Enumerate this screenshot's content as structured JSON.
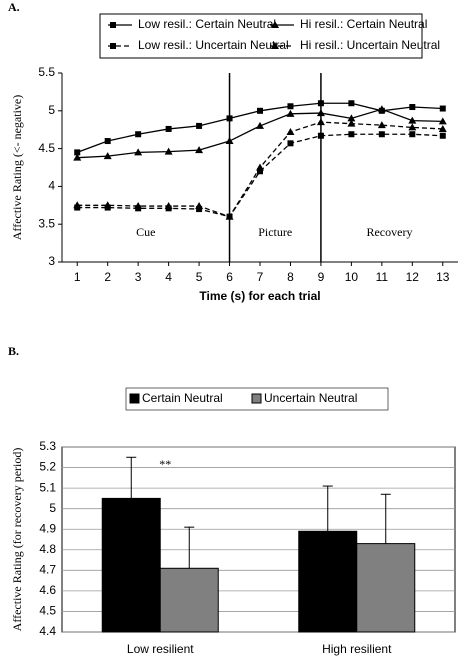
{
  "chart_data": [
    {
      "type": "line",
      "panel_label": "A.",
      "x_label": "Time (s) for each trial",
      "y_label": "Affective Rating (<- negative)",
      "x": [
        1,
        2,
        3,
        4,
        5,
        6,
        7,
        8,
        9,
        10,
        11,
        12,
        13
      ],
      "ylim": [
        3,
        5.5
      ],
      "yticks": [
        3,
        3.5,
        4,
        4.5,
        5,
        5.5
      ],
      "vlines": [
        6,
        9
      ],
      "annotations": [
        "Cue",
        "Picture",
        "Recovery"
      ],
      "series": [
        {
          "name": "Low resil.: Certain Neutral",
          "color": "#000000",
          "marker": "square",
          "line_style": "solid",
          "values": [
            4.45,
            4.6,
            4.69,
            4.76,
            4.8,
            4.9,
            5.0,
            5.06,
            5.1,
            5.1,
            5.0,
            5.05,
            5.03
          ]
        },
        {
          "name": "Hi resil.: Certain Neutral",
          "color": "#000000",
          "marker": "triangle",
          "line_style": "solid",
          "values": [
            4.38,
            4.4,
            4.45,
            4.46,
            4.48,
            4.6,
            4.8,
            4.96,
            4.97,
            4.9,
            5.02,
            4.87,
            4.86
          ]
        },
        {
          "name": "Low resil.: Uncertain Neutral",
          "color": "#000000",
          "marker": "square",
          "line_style": "dashed",
          "values": [
            3.72,
            3.72,
            3.71,
            3.71,
            3.7,
            3.6,
            4.2,
            4.57,
            4.67,
            4.69,
            4.69,
            4.69,
            4.67
          ]
        },
        {
          "name": "Hi resil.: Uncertain Neutral",
          "color": "#000000",
          "marker": "triangle",
          "line_style": "dashed",
          "values": [
            3.75,
            3.75,
            3.74,
            3.74,
            3.74,
            3.6,
            4.25,
            4.72,
            4.85,
            4.83,
            4.81,
            4.78,
            4.76
          ]
        }
      ]
    },
    {
      "type": "bar",
      "panel_label": "B.",
      "y_label": "Affective Rating (for recovery period)",
      "categories": [
        "Low resilient",
        "High resilient"
      ],
      "ylim": [
        4.4,
        5.3
      ],
      "yticks": [
        4.4,
        4.5,
        4.6,
        4.7,
        4.8,
        4.9,
        5,
        5.1,
        5.2,
        5.3
      ],
      "grid": true,
      "annotation": "**",
      "series": [
        {
          "name": "Certain Neutral",
          "color": "#000000",
          "values": [
            5.05,
            4.89
          ],
          "errors": [
            0.2,
            0.22
          ]
        },
        {
          "name": "Uncertain Neutral",
          "color": "#808080",
          "values": [
            4.71,
            4.83
          ],
          "errors": [
            0.2,
            0.24
          ]
        }
      ]
    }
  ]
}
